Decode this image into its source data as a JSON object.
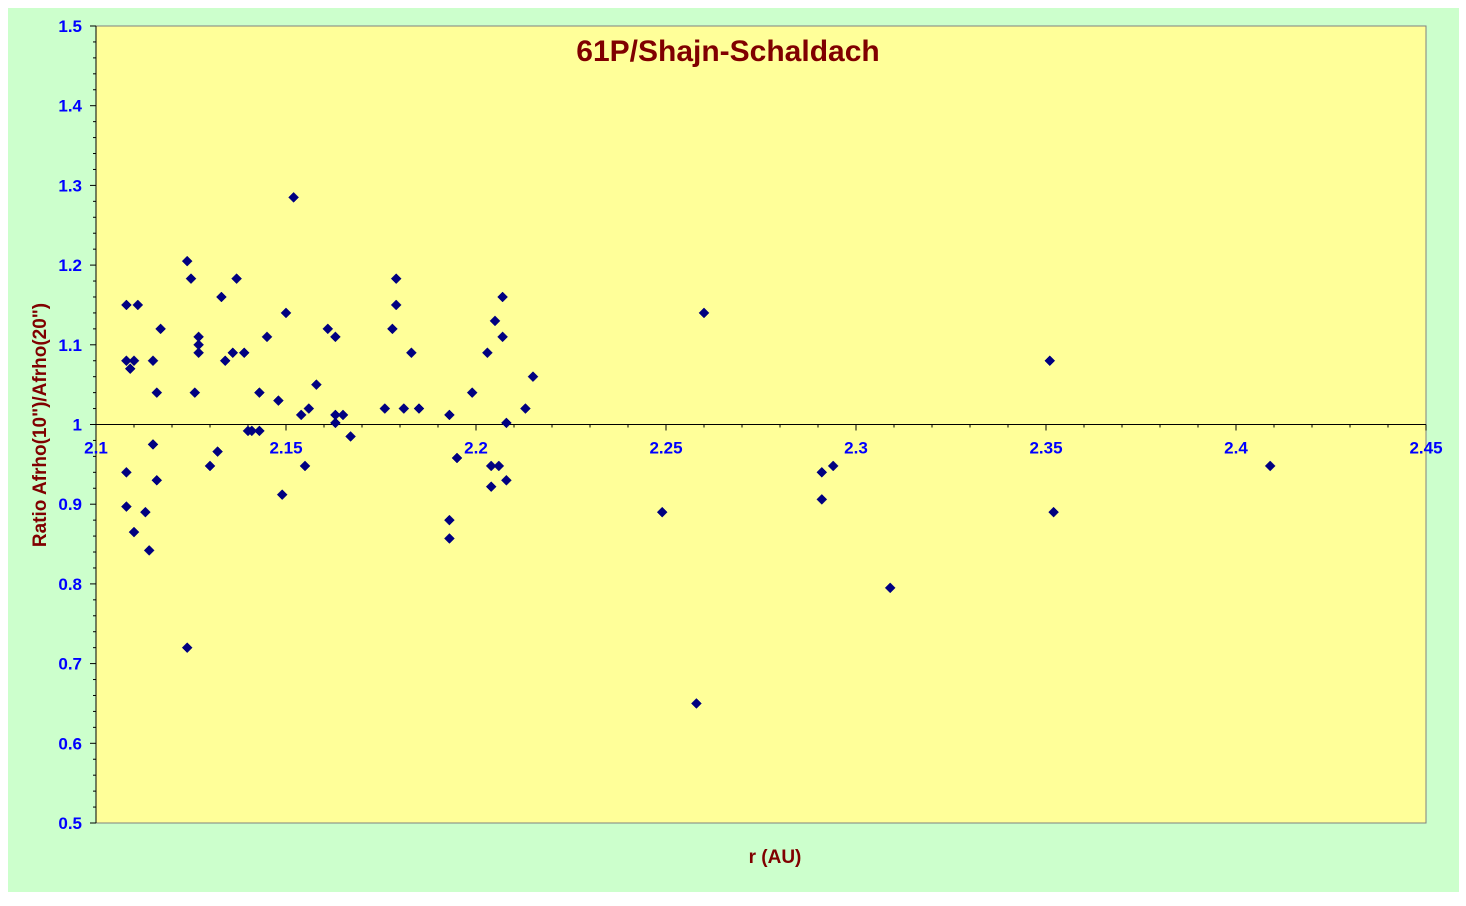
{
  "chart_data": {
    "type": "scatter",
    "title": "61P/Shajn-Schaldach",
    "xlabel": "r (AU)",
    "ylabel": "Ratio Afrho(10\")/Afrho(20\")",
    "xlim": [
      2.1,
      2.45
    ],
    "ylim": [
      0.5,
      1.5
    ],
    "x_ticks": [
      "2.1",
      "2.15",
      "2.2",
      "2.25",
      "2.3",
      "2.35",
      "2.4",
      "2.45"
    ],
    "y_ticks": [
      "0.5",
      "0.6",
      "0.7",
      "0.8",
      "0.9",
      "1",
      "1.1",
      "1.2",
      "1.3",
      "1.4",
      "1.5"
    ],
    "x_axis_crosses_y": 1.0,
    "grid": false,
    "legend": "none",
    "colors": {
      "page_background": "#CCFFCC",
      "plot_background": "#FFFF99",
      "marker": "#000080",
      "tick_labels": "#0000FF",
      "title": "#800000",
      "axis_labels": "#800000"
    },
    "points": [
      [
        2.108,
        1.15
      ],
      [
        2.111,
        1.15
      ],
      [
        2.124,
        1.205
      ],
      [
        2.125,
        1.183
      ],
      [
        2.137,
        1.183
      ],
      [
        2.152,
        1.285
      ],
      [
        2.179,
        1.183
      ],
      [
        2.179,
        1.15
      ],
      [
        2.133,
        1.16
      ],
      [
        2.15,
        1.14
      ],
      [
        2.207,
        1.16
      ],
      [
        2.26,
        1.14
      ],
      [
        2.117,
        1.12
      ],
      [
        2.161,
        1.12
      ],
      [
        2.178,
        1.12
      ],
      [
        2.205,
        1.13
      ],
      [
        2.127,
        1.11
      ],
      [
        2.145,
        1.11
      ],
      [
        2.163,
        1.11
      ],
      [
        2.207,
        1.11
      ],
      [
        2.127,
        1.1
      ],
      [
        2.127,
        1.09
      ],
      [
        2.136,
        1.09
      ],
      [
        2.139,
        1.09
      ],
      [
        2.183,
        1.09
      ],
      [
        2.203,
        1.09
      ],
      [
        2.108,
        1.08
      ],
      [
        2.11,
        1.08
      ],
      [
        2.115,
        1.08
      ],
      [
        2.134,
        1.08
      ],
      [
        2.351,
        1.08
      ],
      [
        2.109,
        1.07
      ],
      [
        2.215,
        1.06
      ],
      [
        2.158,
        1.05
      ],
      [
        2.116,
        1.04
      ],
      [
        2.126,
        1.04
      ],
      [
        2.143,
        1.04
      ],
      [
        2.199,
        1.04
      ],
      [
        2.148,
        1.03
      ],
      [
        2.156,
        1.02
      ],
      [
        2.176,
        1.02
      ],
      [
        2.181,
        1.02
      ],
      [
        2.185,
        1.02
      ],
      [
        2.213,
        1.02
      ],
      [
        2.154,
        1.012
      ],
      [
        2.163,
        1.012
      ],
      [
        2.165,
        1.012
      ],
      [
        2.193,
        1.012
      ],
      [
        2.163,
        1.002
      ],
      [
        2.208,
        1.002
      ],
      [
        2.14,
        0.992
      ],
      [
        2.141,
        0.992
      ],
      [
        2.143,
        0.992
      ],
      [
        2.167,
        0.985
      ],
      [
        2.115,
        0.975
      ],
      [
        2.132,
        0.966
      ],
      [
        2.195,
        0.958
      ],
      [
        2.108,
        0.94
      ],
      [
        2.13,
        0.948
      ],
      [
        2.155,
        0.948
      ],
      [
        2.204,
        0.948
      ],
      [
        2.206,
        0.948
      ],
      [
        2.291,
        0.94
      ],
      [
        2.294,
        0.948
      ],
      [
        2.409,
        0.948
      ],
      [
        2.116,
        0.93
      ],
      [
        2.208,
        0.93
      ],
      [
        2.204,
        0.922
      ],
      [
        2.149,
        0.912
      ],
      [
        2.291,
        0.906
      ],
      [
        2.108,
        0.897
      ],
      [
        2.113,
        0.89
      ],
      [
        2.249,
        0.89
      ],
      [
        2.352,
        0.89
      ],
      [
        2.193,
        0.88
      ],
      [
        2.11,
        0.865
      ],
      [
        2.193,
        0.857
      ],
      [
        2.114,
        0.842
      ],
      [
        2.309,
        0.795
      ],
      [
        2.124,
        0.72
      ],
      [
        2.258,
        0.65
      ]
    ]
  }
}
